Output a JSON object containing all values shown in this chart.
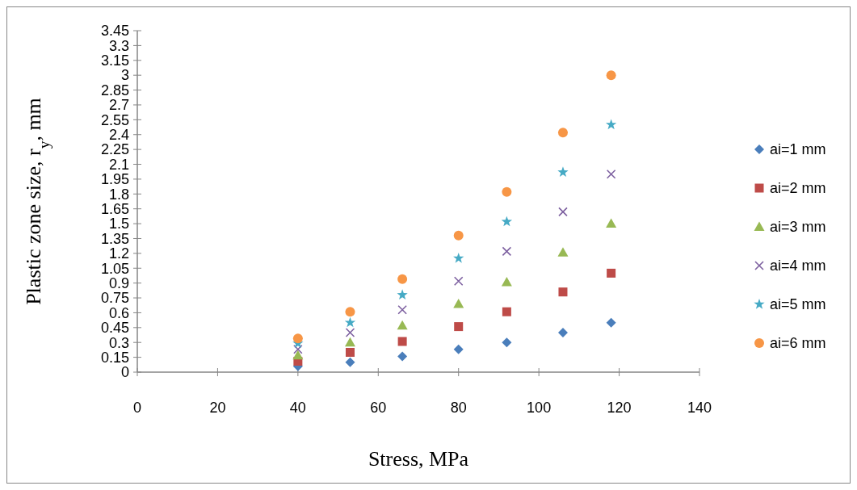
{
  "chart_data": {
    "type": "scatter",
    "xlabel": "Stress, MPa",
    "ylabel": "Plastic zone size, r$_{y}$, mm",
    "x": [
      40,
      53,
      66,
      80,
      92,
      106,
      118
    ],
    "xlim": [
      0,
      140
    ],
    "xticks": [
      0,
      20,
      40,
      60,
      80,
      100,
      120,
      140
    ],
    "ylim": [
      0,
      3.45
    ],
    "yticks": [
      0,
      0.15,
      0.3,
      0.45,
      0.6,
      0.75,
      0.9,
      1.05,
      1.2,
      1.35,
      1.5,
      1.65,
      1.8,
      1.95,
      2.1,
      2.25,
      2.4,
      2.55,
      2.7,
      2.85,
      3,
      3.15,
      3.3,
      3.45
    ],
    "grid": false,
    "legend": "right",
    "series": [
      {
        "name": "ai=1 mm",
        "color": "#4a7ebb",
        "marker": "diamond",
        "values": [
          0.06,
          0.1,
          0.16,
          0.23,
          0.3,
          0.4,
          0.5
        ]
      },
      {
        "name": "ai=2 mm",
        "color": "#be4b48",
        "marker": "square",
        "values": [
          0.11,
          0.2,
          0.31,
          0.46,
          0.61,
          0.81,
          1.0
        ]
      },
      {
        "name": "ai=3 mm",
        "color": "#98b954",
        "marker": "triangle",
        "values": [
          0.17,
          0.3,
          0.47,
          0.69,
          0.91,
          1.21,
          1.5
        ]
      },
      {
        "name": "ai=4 mm",
        "color": "#7d60a0",
        "marker": "cross",
        "values": [
          0.23,
          0.4,
          0.63,
          0.92,
          1.22,
          1.62,
          2.0
        ]
      },
      {
        "name": "ai=5 mm",
        "color": "#46aac5",
        "marker": "star",
        "values": [
          0.29,
          0.5,
          0.78,
          1.15,
          1.52,
          2.02,
          2.5
        ]
      },
      {
        "name": "ai=6 mm",
        "color": "#f79646",
        "marker": "circle",
        "values": [
          0.34,
          0.61,
          0.94,
          1.38,
          1.82,
          2.42,
          3.0
        ]
      }
    ]
  }
}
